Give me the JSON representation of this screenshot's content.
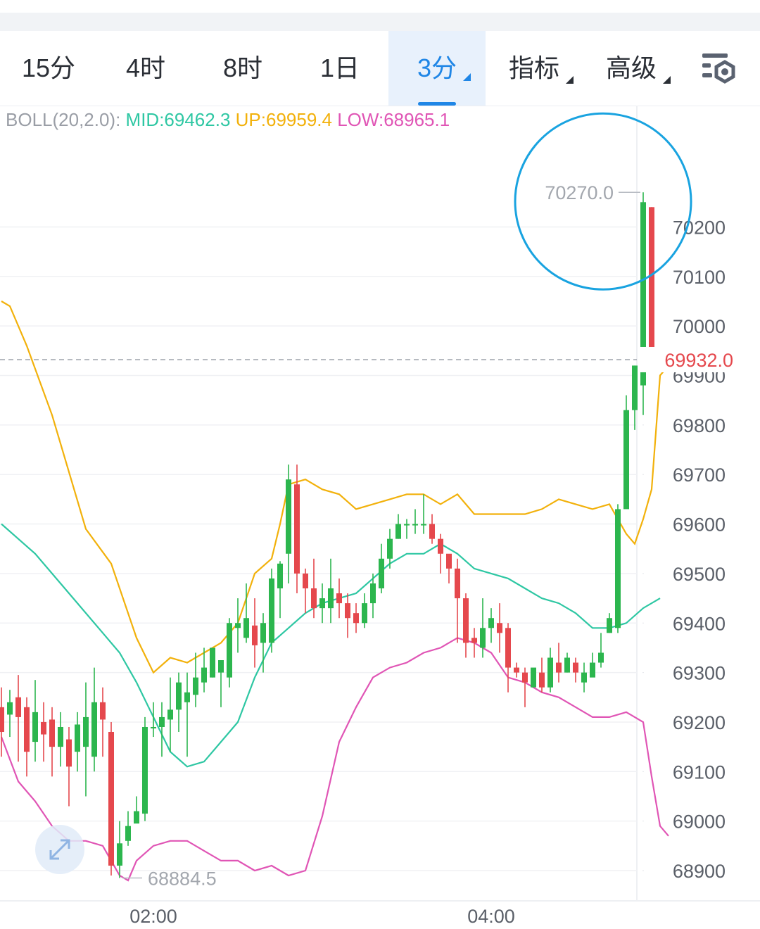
{
  "tabs": [
    {
      "label": "15分",
      "active": false,
      "dropdown": false
    },
    {
      "label": "4时",
      "active": false,
      "dropdown": false
    },
    {
      "label": "8时",
      "active": false,
      "dropdown": false
    },
    {
      "label": "1日",
      "active": false,
      "dropdown": false
    },
    {
      "label": "3分",
      "active": true,
      "dropdown": true
    },
    {
      "label": "指标",
      "active": false,
      "dropdown": true
    },
    {
      "label": "高级",
      "active": false,
      "dropdown": true
    }
  ],
  "settings_icon": "chart-settings-icon",
  "indicator": {
    "label": "BOLL(20,2.0):",
    "mid": "MID:69462.3",
    "up": "UP:69959.4",
    "low": "LOW:68965.1"
  },
  "colors": {
    "up_candle": "#2cb64e",
    "down_candle": "#e5484d",
    "mid_line": "#2ec7a3",
    "upper_line": "#f2b10b",
    "lower_line": "#e055b5",
    "accent": "#1f86e6",
    "highlight_circle": "#19a3e0",
    "price_line": "#e5484d"
  },
  "expand_icon": "expand-arrows-icon",
  "chart_data": {
    "type": "candlestick",
    "interval": "3分",
    "ylim": [
      68840,
      70380
    ],
    "yticks": [
      "70200",
      "70100",
      "70000",
      "69900",
      "69800",
      "69700",
      "69600",
      "69500",
      "69400",
      "69300",
      "69200",
      "69100",
      "69000",
      "68900"
    ],
    "xticks": [
      {
        "label": "02:00",
        "index": 18
      },
      {
        "label": "04:00",
        "index": 58
      }
    ],
    "current_price": "69932.0",
    "max_label": "70270.0",
    "min_label": "68884.5",
    "candles": [
      [
        69230,
        69180,
        69270,
        69130
      ],
      [
        69215,
        69240,
        69265,
        69170
      ],
      [
        69250,
        69210,
        69295,
        69120
      ],
      [
        69230,
        69140,
        69250,
        69090
      ],
      [
        69160,
        69220,
        69285,
        69120
      ],
      [
        69200,
        69175,
        69240,
        69120
      ],
      [
        69205,
        69150,
        69230,
        69090
      ],
      [
        69150,
        69190,
        69220,
        69110
      ],
      [
        69165,
        69110,
        69190,
        69030
      ],
      [
        69140,
        69195,
        69220,
        69100
      ],
      [
        69150,
        69210,
        69280,
        69050
      ],
      [
        69130,
        69240,
        69310,
        69100
      ],
      [
        69240,
        69205,
        69270,
        69130
      ],
      [
        69180,
        68910,
        69200,
        68890
      ],
      [
        68910,
        68955,
        69000,
        68885
      ],
      [
        68960,
        68990,
        69020,
        68950
      ],
      [
        68995,
        69020,
        69050,
        69000
      ],
      [
        69015,
        69190,
        69210,
        69000
      ],
      [
        69190,
        69190,
        69240,
        69170
      ],
      [
        69190,
        69210,
        69240,
        69130
      ],
      [
        69205,
        69225,
        69290,
        69140
      ],
      [
        69225,
        69280,
        69300,
        69180
      ],
      [
        69240,
        69260,
        69300,
        69130
      ],
      [
        69255,
        69290,
        69340,
        69230
      ],
      [
        69280,
        69310,
        69350,
        69260
      ],
      [
        69290,
        69350,
        69330,
        69290
      ],
      [
        69300,
        69325,
        69320,
        69230
      ],
      [
        69290,
        69400,
        69410,
        69270
      ],
      [
        69390,
        69400,
        69450,
        69340
      ],
      [
        69370,
        69410,
        69480,
        69360
      ],
      [
        69395,
        69355,
        69450,
        69310
      ],
      [
        69360,
        69400,
        69420,
        69300
      ],
      [
        69360,
        69490,
        69510,
        69340
      ],
      [
        69470,
        69520,
        69525,
        69410
      ],
      [
        69540,
        69690,
        69720,
        69480
      ],
      [
        69680,
        69500,
        69720,
        69460
      ],
      [
        69500,
        69470,
        69510,
        69420
      ],
      [
        69470,
        69430,
        69530,
        69410
      ],
      [
        69430,
        69450,
        69480,
        69400
      ],
      [
        69430,
        69470,
        69530,
        69400
      ],
      [
        69460,
        69440,
        69490,
        69410
      ],
      [
        69440,
        69410,
        69460,
        69370
      ],
      [
        69420,
        69400,
        69440,
        69380
      ],
      [
        69400,
        69440,
        69460,
        69390
      ],
      [
        69440,
        69480,
        69500,
        69410
      ],
      [
        69470,
        69530,
        69560,
        69460
      ],
      [
        69530,
        69570,
        69590,
        69510
      ],
      [
        69570,
        69600,
        69620,
        69570
      ],
      [
        69600,
        69600,
        69610,
        69570
      ],
      [
        69600,
        69600,
        69630,
        69580
      ],
      [
        69600,
        69600,
        69660,
        69580
      ],
      [
        69600,
        69570,
        69620,
        69560
      ],
      [
        69570,
        69540,
        69580,
        69500
      ],
      [
        69540,
        69510,
        69520,
        69480
      ],
      [
        69510,
        69450,
        69530,
        69360
      ],
      [
        69450,
        69360,
        69460,
        69330
      ],
      [
        69370,
        69360,
        69390,
        69330
      ],
      [
        69350,
        69390,
        69450,
        69330
      ],
      [
        69390,
        69410,
        69430,
        69360
      ],
      [
        69400,
        69380,
        69440,
        69340
      ],
      [
        69390,
        69310,
        69400,
        69260
      ],
      [
        69310,
        69300,
        69320,
        69290
      ],
      [
        69300,
        69280,
        69310,
        69230
      ],
      [
        69270,
        69310,
        69300,
        69270
      ],
      [
        69300,
        69270,
        69330,
        69260
      ],
      [
        69270,
        69330,
        69350,
        69260
      ],
      [
        69320,
        69300,
        69360,
        69280
      ],
      [
        69300,
        69330,
        69340,
        69300
      ],
      [
        69320,
        69300,
        69330,
        69280
      ],
      [
        69280,
        69300,
        69320,
        69260
      ],
      [
        69290,
        69320,
        69340,
        69300
      ],
      [
        69320,
        69340,
        69380,
        69310
      ],
      [
        69380,
        69410,
        69420,
        69380
      ],
      [
        69390,
        69630,
        69640,
        69380
      ],
      [
        69630,
        69830,
        69860,
        69650
      ],
      [
        69830,
        69920,
        69920,
        69790
      ],
      [
        69880,
        70250,
        70270,
        69820
      ],
      [
        70240,
        69930,
        70240,
        69910
      ]
    ],
    "boll_mid": [
      [
        0,
        69600
      ],
      [
        4,
        69540
      ],
      [
        8,
        69460
      ],
      [
        12,
        69380
      ],
      [
        14,
        69340
      ],
      [
        16,
        69280
      ],
      [
        18,
        69210
      ],
      [
        20,
        69140
      ],
      [
        22,
        69110
      ],
      [
        24,
        69120
      ],
      [
        26,
        69160
      ],
      [
        28,
        69200
      ],
      [
        30,
        69290
      ],
      [
        32,
        69360
      ],
      [
        34,
        69390
      ],
      [
        36,
        69420
      ],
      [
        38,
        69440
      ],
      [
        40,
        69450
      ],
      [
        42,
        69460
      ],
      [
        44,
        69490
      ],
      [
        46,
        69520
      ],
      [
        48,
        69540
      ],
      [
        50,
        69540
      ],
      [
        52,
        69560
      ],
      [
        54,
        69540
      ],
      [
        56,
        69510
      ],
      [
        58,
        69500
      ],
      [
        60,
        69490
      ],
      [
        62,
        69470
      ],
      [
        64,
        69450
      ],
      [
        66,
        69440
      ],
      [
        68,
        69420
      ],
      [
        70,
        69390
      ],
      [
        72,
        69390
      ],
      [
        74,
        69400
      ],
      [
        76,
        69430
      ],
      [
        78,
        69450
      ]
    ],
    "boll_up": [
      [
        0,
        70050
      ],
      [
        1,
        70040
      ],
      [
        3,
        69960
      ],
      [
        6,
        69820
      ],
      [
        10,
        69590
      ],
      [
        13,
        69520
      ],
      [
        16,
        69370
      ],
      [
        18,
        69300
      ],
      [
        20,
        69330
      ],
      [
        22,
        69320
      ],
      [
        24,
        69340
      ],
      [
        26,
        69360
      ],
      [
        28,
        69400
      ],
      [
        30,
        69500
      ],
      [
        32,
        69530
      ],
      [
        33,
        69600
      ],
      [
        34,
        69680
      ],
      [
        36,
        69690
      ],
      [
        38,
        69670
      ],
      [
        40,
        69660
      ],
      [
        42,
        69630
      ],
      [
        44,
        69640
      ],
      [
        46,
        69650
      ],
      [
        48,
        69660
      ],
      [
        50,
        69660
      ],
      [
        52,
        69640
      ],
      [
        54,
        69660
      ],
      [
        56,
        69620
      ],
      [
        58,
        69620
      ],
      [
        60,
        69620
      ],
      [
        62,
        69620
      ],
      [
        64,
        69630
      ],
      [
        66,
        69650
      ],
      [
        68,
        69640
      ],
      [
        70,
        69630
      ],
      [
        72,
        69640
      ],
      [
        74,
        69580
      ],
      [
        75,
        69560
      ],
      [
        76,
        69610
      ],
      [
        77,
        69670
      ],
      [
        78,
        69900
      ],
      [
        79,
        69920
      ]
    ],
    "boll_low": [
      [
        0,
        69170
      ],
      [
        2,
        69080
      ],
      [
        4,
        69040
      ],
      [
        6,
        68990
      ],
      [
        8,
        68960
      ],
      [
        10,
        68960
      ],
      [
        12,
        68950
      ],
      [
        13,
        68920
      ],
      [
        14,
        68890
      ],
      [
        15,
        68880
      ],
      [
        16,
        68920
      ],
      [
        18,
        68950
      ],
      [
        20,
        68960
      ],
      [
        22,
        68960
      ],
      [
        24,
        68940
      ],
      [
        26,
        68920
      ],
      [
        28,
        68920
      ],
      [
        30,
        68900
      ],
      [
        32,
        68910
      ],
      [
        34,
        68890
      ],
      [
        36,
        68900
      ],
      [
        38,
        69010
      ],
      [
        40,
        69160
      ],
      [
        42,
        69230
      ],
      [
        44,
        69290
      ],
      [
        46,
        69310
      ],
      [
        48,
        69320
      ],
      [
        50,
        69340
      ],
      [
        52,
        69350
      ],
      [
        54,
        69370
      ],
      [
        56,
        69360
      ],
      [
        58,
        69340
      ],
      [
        60,
        69290
      ],
      [
        62,
        69280
      ],
      [
        64,
        69260
      ],
      [
        66,
        69250
      ],
      [
        68,
        69230
      ],
      [
        70,
        69210
      ],
      [
        72,
        69210
      ],
      [
        74,
        69220
      ],
      [
        76,
        69200
      ],
      [
        77,
        69090
      ],
      [
        78,
        68990
      ],
      [
        79,
        68970
      ]
    ]
  }
}
